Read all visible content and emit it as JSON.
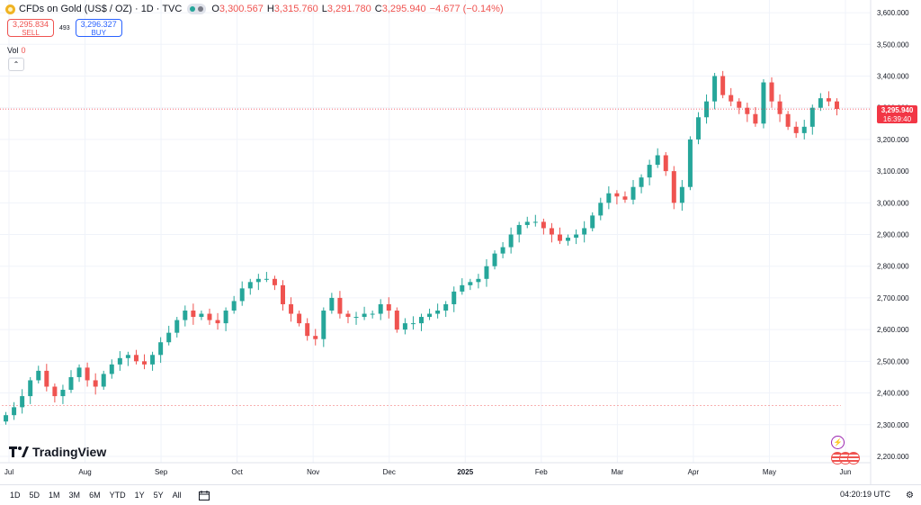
{
  "header": {
    "symbol": "CFDs on Gold (US$ / OZ) · 1D · TVC",
    "open_label": "O",
    "open": "3,300.567",
    "high_label": "H",
    "high": "3,315.760",
    "low_label": "L",
    "low": "3,291.780",
    "close_label": "C",
    "close": "3,295.940",
    "change": "−4.677 (−0.14%)"
  },
  "trade": {
    "sell_price": "3,295.834",
    "sell_label": "SELL",
    "spread": "493",
    "buy_price": "3,296.327",
    "buy_label": "BUY"
  },
  "volume": {
    "label": "Vol",
    "value": "0"
  },
  "price_tag": {
    "price": "3,295.940",
    "countdown": "16:39:40"
  },
  "logo_text": "TradingView",
  "ranges": [
    "1D",
    "5D",
    "1M",
    "3M",
    "6M",
    "YTD",
    "1Y",
    "5Y",
    "All"
  ],
  "clock": "04:20:19 UTC",
  "colors": {
    "up": "#26a69a",
    "down": "#ef5350",
    "accent": "#2962ff"
  },
  "chart_data": {
    "type": "candlestick",
    "x_labels": [
      "Jul",
      "Aug",
      "Sep",
      "Oct",
      "Nov",
      "Dec",
      "2025",
      "Feb",
      "Mar",
      "Apr",
      "May",
      "Jun"
    ],
    "y_ticks": [
      2200,
      2300,
      2400,
      2500,
      2600,
      2700,
      2800,
      2900,
      3000,
      3100,
      3200,
      3300,
      3400,
      3500,
      3600
    ],
    "ylim": [
      2180,
      3640
    ],
    "last_price": 3295.94,
    "reference_line": 2360,
    "series": [
      2330,
      2355,
      2390,
      2440,
      2470,
      2420,
      2390,
      2410,
      2450,
      2480,
      2440,
      2420,
      2460,
      2490,
      2510,
      2520,
      2500,
      2490,
      2520,
      2560,
      2590,
      2630,
      2660,
      2640,
      2650,
      2630,
      2620,
      2660,
      2690,
      2730,
      2750,
      2760,
      2760,
      2740,
      2680,
      2650,
      2620,
      2580,
      2570,
      2660,
      2700,
      2650,
      2640,
      2640,
      2650,
      2650,
      2680,
      2660,
      2600,
      2620,
      2620,
      2640,
      2650,
      2660,
      2680,
      2720,
      2740,
      2750,
      2760,
      2800,
      2840,
      2860,
      2900,
      2930,
      2940,
      2940,
      2920,
      2900,
      2880,
      2890,
      2900,
      2920,
      2960,
      3000,
      3030,
      3020,
      3010,
      3050,
      3080,
      3120,
      3150,
      3100,
      3000,
      3050,
      3200,
      3270,
      3320,
      3400,
      3340,
      3320,
      3300,
      3280,
      3250,
      3380,
      3320,
      3280,
      3240,
      3220,
      3240,
      3300,
      3330,
      3320,
      3296
    ]
  }
}
